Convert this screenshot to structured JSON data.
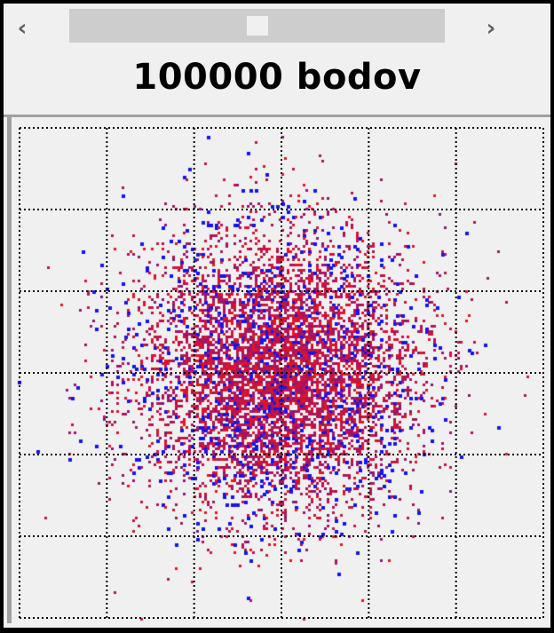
{
  "window": {
    "scrollbar": {
      "left_icon": "chevron-left-icon",
      "right_icon": "chevron-right-icon",
      "left_glyph": "‹",
      "right_glyph": "›",
      "thumb_position": 0.5
    },
    "title": "100000 bodov"
  },
  "chart_data": {
    "type": "scatter",
    "title": "100000 bodov",
    "point_count": 100000,
    "distribution": "2D normal, density-colored",
    "grid": true,
    "grid_divisions": [
      6,
      6
    ],
    "axes_labels_shown": false,
    "colors": {
      "low_density": "#1414f0",
      "high_density": "#e8141e",
      "background": "#f0f0f0",
      "grid": "#000000"
    }
  }
}
